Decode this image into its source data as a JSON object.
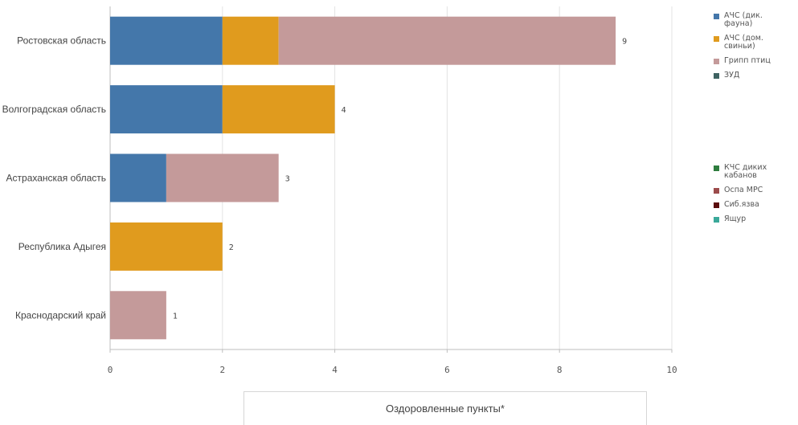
{
  "chart_data": {
    "type": "bar",
    "orientation": "horizontal",
    "stacked": true,
    "categories": [
      "Ростовская область",
      "Волгоградская область",
      "Астраханская область",
      "Республика Адыгея",
      "Краснодарский край"
    ],
    "series": [
      {
        "name": "АЧС (дик. фауна)",
        "color": "#4477aa",
        "values": [
          2,
          2,
          1,
          0,
          0
        ]
      },
      {
        "name": "АЧС (дом. свиньи)",
        "color": "#e09b1e",
        "values": [
          1,
          2,
          0,
          2,
          0
        ]
      },
      {
        "name": "Грипп птиц",
        "color": "#c49a9a",
        "values": [
          6,
          0,
          2,
          0,
          1
        ]
      },
      {
        "name": "ЗУД",
        "color": "#3f6362",
        "values": [
          0,
          0,
          0,
          0,
          0
        ]
      },
      {
        "name": "КЧС диких кабанов",
        "color": "#2e7d3e",
        "values": [
          0,
          0,
          0,
          0,
          0
        ]
      },
      {
        "name": "Оспа МРС",
        "color": "#9c4b4b",
        "values": [
          0,
          0,
          0,
          0,
          0
        ]
      },
      {
        "name": "Сиб.язва",
        "color": "#5a0d0d",
        "values": [
          0,
          0,
          0,
          0,
          0
        ]
      },
      {
        "name": "Ящур",
        "color": "#3aa99a",
        "values": [
          0,
          0,
          0,
          0,
          0
        ]
      }
    ],
    "totals": [
      9,
      4,
      3,
      2,
      1
    ],
    "xlim": [
      0,
      10
    ],
    "xticks": [
      0,
      2,
      4,
      6,
      8,
      10
    ],
    "grid": true,
    "legend_position": "right",
    "xlabel": "Оздоровленные пункты*"
  }
}
